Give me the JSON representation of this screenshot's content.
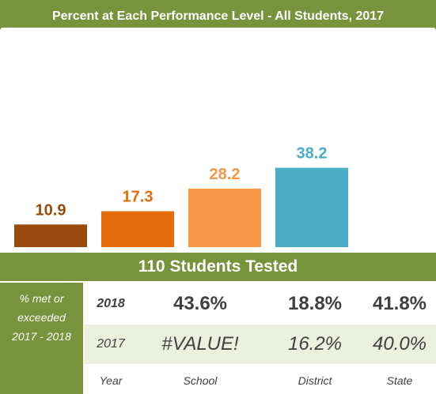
{
  "chart_data": {
    "type": "bar",
    "title": "Percent at Each Performance Level - All Students, 2017",
    "categories": [
      null,
      null,
      null,
      null
    ],
    "values": [
      10.9,
      17.3,
      28.2,
      38.2
    ],
    "colors": [
      "#9b4a0d",
      "#e46c0a",
      "#f79646",
      "#4bacc6"
    ],
    "ylim": [
      0,
      100
    ]
  },
  "table": {
    "header": "110 Students Tested",
    "side_label": "% met or exceeded 2017 - 2018",
    "rows": [
      [
        "2018",
        "43.6%",
        "18.8%",
        "41.8%"
      ],
      [
        "2017",
        "#VALUE!",
        "16.2%",
        "40.0%"
      ]
    ],
    "columns": [
      "Year",
      "School",
      "District",
      "State"
    ]
  }
}
